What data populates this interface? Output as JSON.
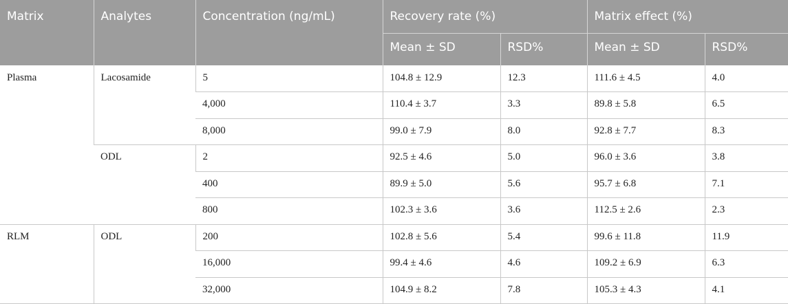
{
  "header": {
    "matrix": "Matrix",
    "analytes": "Analytes",
    "concentration": "Concentration (ng/mL)",
    "recovery_rate": "Recovery rate (%)",
    "matrix_effect": "Matrix effect (%)",
    "mean_sd": "Mean ± SD",
    "rsd": "RSD%"
  },
  "groups": [
    {
      "matrix": "Plasma",
      "analytes": [
        {
          "name": "Lacosamide",
          "rows": [
            {
              "conc": "5",
              "rec_mean": "104.8 ± 12.9",
              "rec_rsd": "12.3",
              "me_mean": "111.6 ± 4.5",
              "me_rsd": "4.0"
            },
            {
              "conc": "4,000",
              "rec_mean": "110.4 ± 3.7",
              "rec_rsd": "3.3",
              "me_mean": "89.8 ± 5.8",
              "me_rsd": "6.5"
            },
            {
              "conc": "8,000",
              "rec_mean": "99.0 ± 7.9",
              "rec_rsd": "8.0",
              "me_mean": "92.8 ± 7.7",
              "me_rsd": "8.3"
            }
          ]
        },
        {
          "name": "ODL",
          "rows": [
            {
              "conc": "2",
              "rec_mean": "92.5 ± 4.6",
              "rec_rsd": "5.0",
              "me_mean": "96.0 ± 3.6",
              "me_rsd": "3.8"
            },
            {
              "conc": "400",
              "rec_mean": "89.9 ± 5.0",
              "rec_rsd": "5.6",
              "me_mean": "95.7 ± 6.8",
              "me_rsd": "7.1"
            },
            {
              "conc": "800",
              "rec_mean": "102.3 ± 3.6",
              "rec_rsd": "3.6",
              "me_mean": "112.5 ± 2.6",
              "me_rsd": "2.3"
            }
          ]
        }
      ]
    },
    {
      "matrix": "RLM",
      "analytes": [
        {
          "name": "ODL",
          "rows": [
            {
              "conc": "200",
              "rec_mean": "102.8 ± 5.6",
              "rec_rsd": "5.4",
              "me_mean": "99.6 ± 11.8",
              "me_rsd": "11.9"
            },
            {
              "conc": "16,000",
              "rec_mean": "99.4 ± 4.6",
              "rec_rsd": "4.6",
              "me_mean": "109.2 ± 6.9",
              "me_rsd": "6.3"
            },
            {
              "conc": "32,000",
              "rec_mean": "104.9 ± 8.2",
              "rec_rsd": "7.8",
              "me_mean": "105.3 ± 4.3",
              "me_rsd": "4.1"
            }
          ]
        }
      ]
    }
  ]
}
